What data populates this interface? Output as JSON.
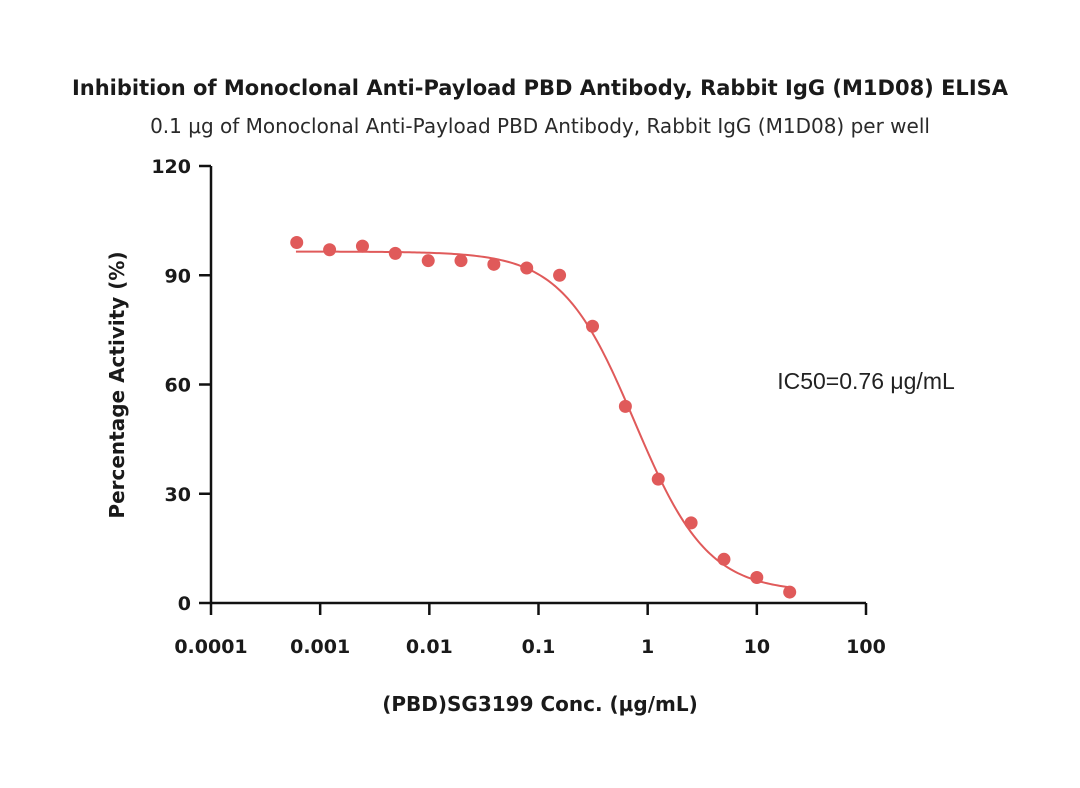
{
  "colors": {
    "series": "#e05a5a",
    "axis": "#111111",
    "text": "#1a1a1a"
  },
  "chart_data": {
    "type": "scatter",
    "title": "Inhibition of Monoclonal Anti-Payload PBD Antibody, Rabbit IgG (M1D08) ELISA",
    "subtitle": "0.1 μg of Monoclonal Anti-Payload PBD Antibody, Rabbit IgG (M1D08) per well",
    "xlabel": "(PBD)SG3199 Conc. (μg/mL)",
    "ylabel": "Percentage Activity (%)",
    "xscale": "log",
    "xlim": [
      0.0001,
      100
    ],
    "ylim": [
      0,
      120
    ],
    "xticks": [
      0.0001,
      0.001,
      0.01,
      0.1,
      1,
      10,
      100
    ],
    "xtick_labels": [
      "0.0001",
      "0.001",
      "0.01",
      "0.1",
      "1",
      "10",
      "100"
    ],
    "yticks": [
      0,
      30,
      60,
      90,
      120
    ],
    "ytick_labels": [
      "0",
      "30",
      "60",
      "90",
      "120"
    ],
    "grid": false,
    "annotation": "IC50=0.76 μg/mL",
    "series": [
      {
        "name": "M1D08",
        "x": [
          0.00061,
          0.00122,
          0.00244,
          0.00488,
          0.00977,
          0.0195,
          0.039,
          0.078,
          0.156,
          0.3125,
          0.625,
          1.25,
          2.5,
          5,
          10,
          20
        ],
        "y": [
          99,
          97,
          98,
          96,
          94,
          94,
          93,
          92,
          90,
          76,
          54,
          34,
          22,
          12,
          7,
          3
        ]
      }
    ],
    "fit": {
      "model": "4PL",
      "top": 96.5,
      "bottom": 3,
      "ic50": 0.76,
      "hill": 1.3,
      "x_range": [
        0.0006,
        20
      ]
    }
  }
}
